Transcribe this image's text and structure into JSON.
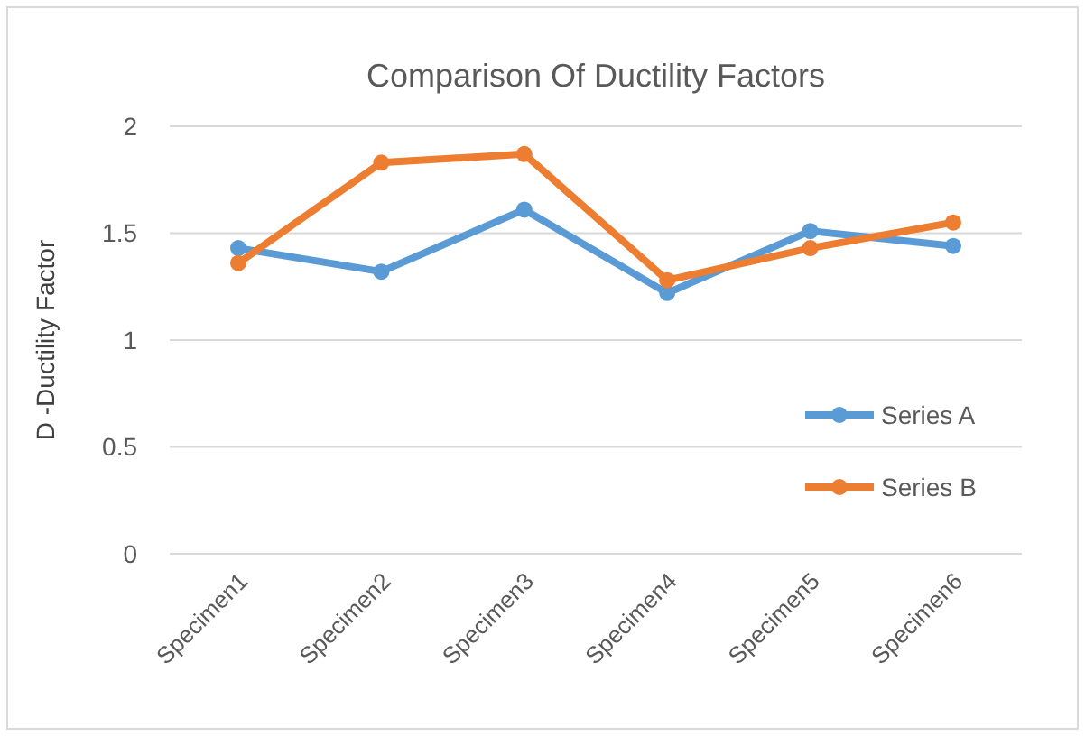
{
  "chart_data": {
    "type": "line",
    "title": "Comparison Of Ductility Factors",
    "ylabel": "D -Ductility Factor",
    "categories": [
      "Specimen1",
      "Specimen2",
      "Specimen3",
      "Specimen4",
      "Specimen5",
      "Specimen6"
    ],
    "series": [
      {
        "name": "Series A",
        "color": "#5b9bd5",
        "values": [
          1.43,
          1.32,
          1.61,
          1.22,
          1.51,
          1.44
        ]
      },
      {
        "name": "Series B",
        "color": "#ed7d31",
        "values": [
          1.36,
          1.83,
          1.87,
          1.28,
          1.43,
          1.55
        ]
      }
    ],
    "ylim": [
      0,
      2
    ],
    "yticks": [
      0,
      0.5,
      1,
      1.5,
      2
    ],
    "grid": "y",
    "legend": "right",
    "marker": "circle",
    "line_style": "solid"
  }
}
